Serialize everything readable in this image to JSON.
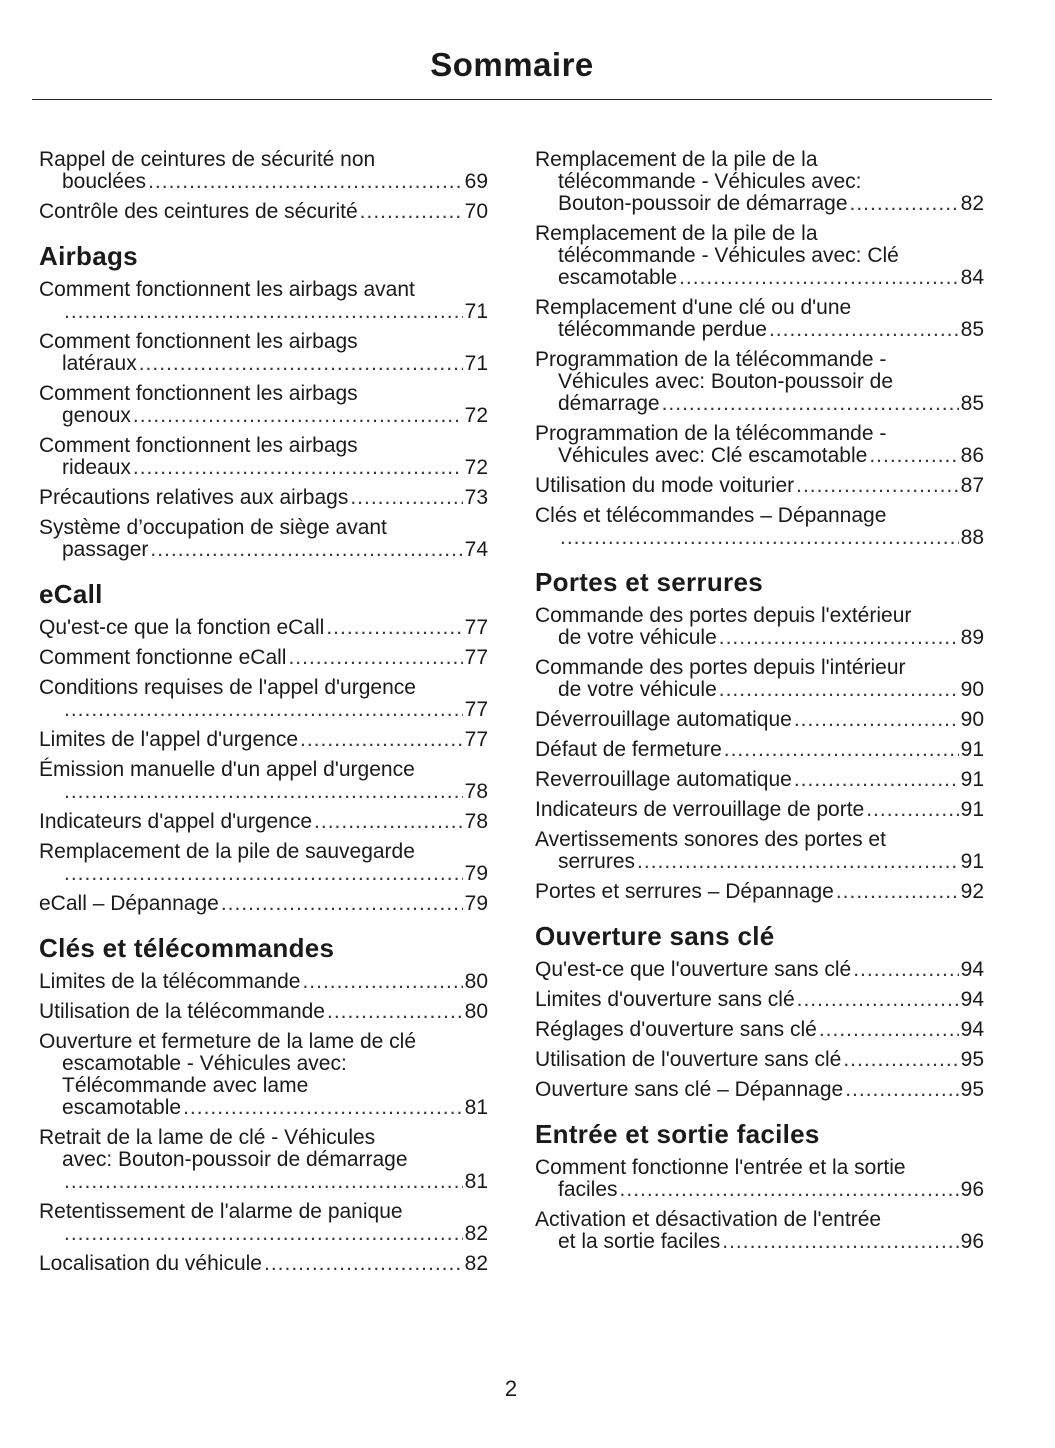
{
  "title": "Sommaire",
  "page_number": "2",
  "columns": [
    {
      "sections": [
        {
          "heading": "",
          "entries": [
            {
              "lines": [
                "Rappel de ceintures de sécurité non",
                "bouclées"
              ],
              "page": "69"
            },
            {
              "lines": [
                "Contrôle des ceintures de sécurité"
              ],
              "page": "70"
            }
          ]
        },
        {
          "heading": "Airbags",
          "entries": [
            {
              "lines": [
                "Comment fonctionnent les airbags avant",
                ""
              ],
              "page": "71"
            },
            {
              "lines": [
                "Comment fonctionnent les airbags",
                "latéraux"
              ],
              "page": "71"
            },
            {
              "lines": [
                "Comment fonctionnent les airbags",
                "genoux"
              ],
              "page": "72"
            },
            {
              "lines": [
                "Comment fonctionnent les airbags",
                "rideaux"
              ],
              "page": "72"
            },
            {
              "lines": [
                "Précautions relatives aux airbags"
              ],
              "page": "73"
            },
            {
              "lines": [
                "Système d’occupation de siège avant",
                "passager"
              ],
              "page": "74"
            }
          ]
        },
        {
          "heading": "eCall",
          "entries": [
            {
              "lines": [
                "Qu'est-ce que la fonction eCall"
              ],
              "page": "77"
            },
            {
              "lines": [
                "Comment fonctionne eCall"
              ],
              "page": "77"
            },
            {
              "lines": [
                "Conditions requises de l'appel d'urgence",
                ""
              ],
              "page": "77"
            },
            {
              "lines": [
                "Limites de l'appel d'urgence"
              ],
              "page": "77"
            },
            {
              "lines": [
                "Émission manuelle d'un appel d'urgence",
                ""
              ],
              "page": "78"
            },
            {
              "lines": [
                "Indicateurs d'appel d'urgence"
              ],
              "page": "78"
            },
            {
              "lines": [
                "Remplacement de la pile de sauvegarde",
                ""
              ],
              "page": "79"
            },
            {
              "lines": [
                "eCall – Dépannage"
              ],
              "page": "79"
            }
          ]
        },
        {
          "heading": "Clés et télécommandes",
          "entries": [
            {
              "lines": [
                "Limites de la télécommande"
              ],
              "page": "80"
            },
            {
              "lines": [
                "Utilisation de la télécommande"
              ],
              "page": "80"
            },
            {
              "lines": [
                "Ouverture et fermeture de la lame de clé",
                "escamotable - Véhicules avec:",
                "Télécommande avec lame",
                "escamotable"
              ],
              "page": "81"
            },
            {
              "lines": [
                "Retrait de la lame de clé - Véhicules",
                "avec: Bouton-poussoir de démarrage",
                ""
              ],
              "page": "81"
            },
            {
              "lines": [
                "Retentissement de l'alarme de panique",
                ""
              ],
              "page": "82"
            },
            {
              "lines": [
                "Localisation du véhicule"
              ],
              "page": "82"
            }
          ]
        }
      ]
    },
    {
      "sections": [
        {
          "heading": "",
          "entries": [
            {
              "lines": [
                "Remplacement de la pile de la",
                "télécommande - Véhicules avec:",
                "Bouton-poussoir de démarrage"
              ],
              "page": "82"
            },
            {
              "lines": [
                "Remplacement de la pile de la",
                "télécommande - Véhicules avec: Clé",
                "escamotable"
              ],
              "page": "84"
            },
            {
              "lines": [
                "Remplacement d'une clé ou d'une",
                "télécommande perdue"
              ],
              "page": "85"
            },
            {
              "lines": [
                "Programmation de la télécommande -",
                "Véhicules avec: Bouton-poussoir de",
                "démarrage"
              ],
              "page": "85"
            },
            {
              "lines": [
                "Programmation de la télécommande -",
                "Véhicules avec: Clé escamotable"
              ],
              "page": "86"
            },
            {
              "lines": [
                "Utilisation du mode voiturier"
              ],
              "page": "87"
            },
            {
              "lines": [
                "Clés et télécommandes – Dépannage",
                ""
              ],
              "page": "88"
            }
          ]
        },
        {
          "heading": "Portes et serrures",
          "entries": [
            {
              "lines": [
                "Commande des portes depuis l'extérieur",
                "de votre véhicule"
              ],
              "page": "89"
            },
            {
              "lines": [
                "Commande des portes depuis l'intérieur",
                "de votre véhicule"
              ],
              "page": "90"
            },
            {
              "lines": [
                "Déverrouillage automatique"
              ],
              "page": "90"
            },
            {
              "lines": [
                "Défaut de fermeture"
              ],
              "page": "91"
            },
            {
              "lines": [
                "Reverrouillage automatique"
              ],
              "page": "91"
            },
            {
              "lines": [
                "Indicateurs de verrouillage de porte"
              ],
              "page": "91"
            },
            {
              "lines": [
                "Avertissements sonores des portes et",
                "serrures"
              ],
              "page": "91"
            },
            {
              "lines": [
                "Portes et serrures – Dépannage"
              ],
              "page": "92"
            }
          ]
        },
        {
          "heading": "Ouverture sans clé",
          "entries": [
            {
              "lines": [
                "Qu'est-ce que l'ouverture sans clé"
              ],
              "page": "94"
            },
            {
              "lines": [
                "Limites d'ouverture sans clé"
              ],
              "page": "94"
            },
            {
              "lines": [
                "Réglages d'ouverture sans clé"
              ],
              "page": "94"
            },
            {
              "lines": [
                "Utilisation de l'ouverture sans clé"
              ],
              "page": "95"
            },
            {
              "lines": [
                "Ouverture sans clé – Dépannage"
              ],
              "page": "95"
            }
          ]
        },
        {
          "heading": "Entrée et sortie faciles",
          "entries": [
            {
              "lines": [
                "Comment fonctionne l'entrée et la sortie",
                "faciles"
              ],
              "page": "96"
            },
            {
              "lines": [
                "Activation et désactivation de l'entrée",
                "et la sortie faciles"
              ],
              "page": "96"
            }
          ]
        }
      ]
    }
  ]
}
